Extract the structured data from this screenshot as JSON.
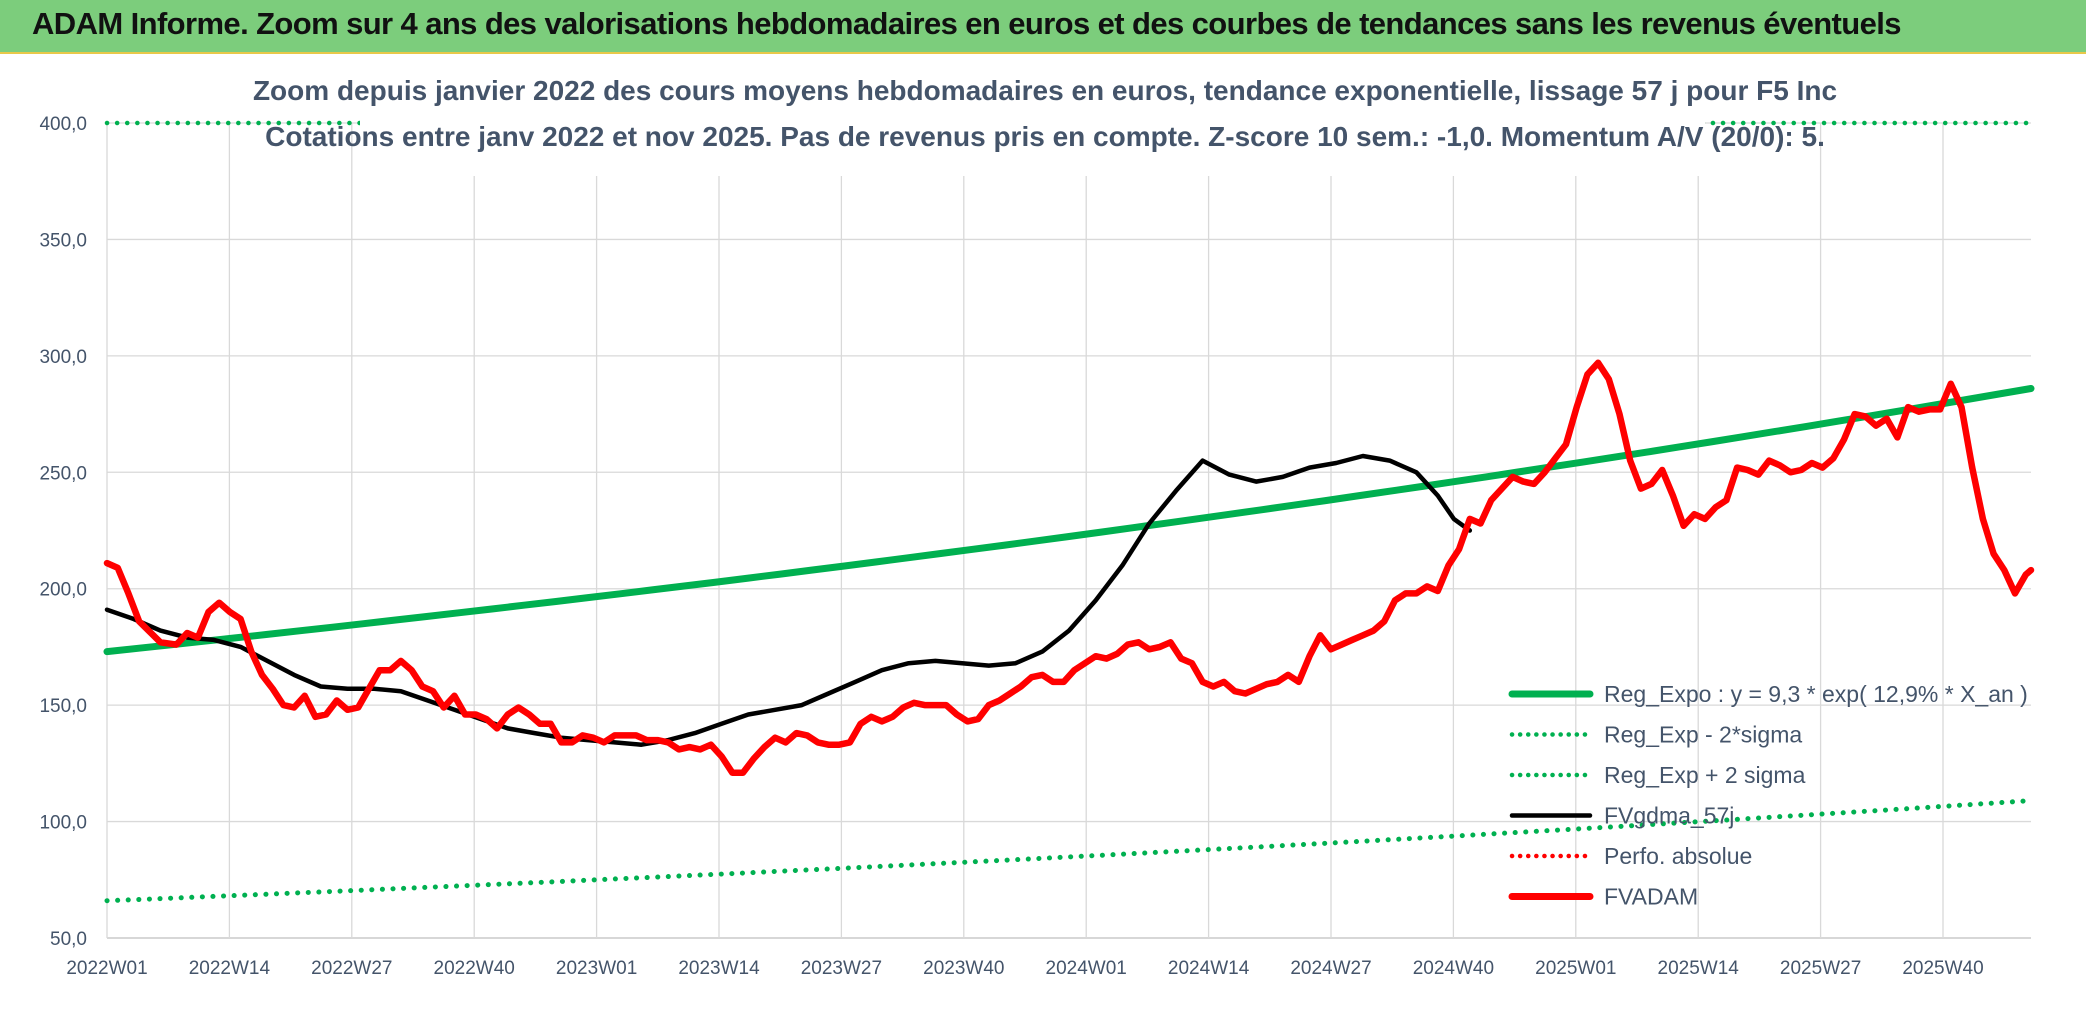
{
  "header": {
    "title": "ADAM Informe. Zoom sur 4 ans des valorisations hebdomadaires en euros et des courbes de tendances sans les revenus éventuels"
  },
  "colors": {
    "green": "#00b050",
    "red": "#ff0000",
    "black": "#000000",
    "grid": "#d9d9d9",
    "text": "#44546a",
    "banner": "#7ccd7c"
  },
  "chart_data": {
    "type": "line",
    "title_line1": "Zoom depuis janvier 2022 des cours moyens hebdomadaires en euros, tendance exponentielle, lissage 57 j pour F5 Inc",
    "title_line2": "Cotations entre janv 2022 et nov 2025. Pas de revenus pris en compte. Z-score 10 sem.: -1,0. Momentum A/V (20/0): 5.",
    "ylim": [
      50,
      400
    ],
    "y_ticks": [
      "50,0",
      "100,0",
      "150,0",
      "200,0",
      "250,0",
      "300,0",
      "350,0",
      "400,0"
    ],
    "x_ticks": [
      "2022W01",
      "2022W14",
      "2022W27",
      "2022W40",
      "2023W01",
      "2023W14",
      "2023W27",
      "2023W40",
      "2024W01",
      "2024W14",
      "2024W27",
      "2024W40",
      "2025W01",
      "2025W14",
      "2025W27",
      "2025W40"
    ],
    "week_count": 210,
    "legend": [
      {
        "label": "Reg_Expo : y = 9,3 * exp( 12,9% *  X_an )",
        "style": "solid",
        "color": "#00b050"
      },
      {
        "label": "Reg_Exp - 2*sigma",
        "style": "dotted",
        "color": "#00b050"
      },
      {
        "label": "Reg_Exp + 2 sigma",
        "style": "dotted",
        "color": "#00b050"
      },
      {
        "label": "FVgdma_57j",
        "style": "solid",
        "color": "#000000"
      },
      {
        "label": "Perfo. absolue",
        "style": "dotted",
        "color": "#ff0000"
      },
      {
        "label": "FVADAM",
        "style": "solid",
        "color": "#ff0000"
      }
    ],
    "series": [
      {
        "name": "Reg_Expo",
        "start": 173,
        "end": 286
      },
      {
        "name": "Reg_Exp - 2*sigma",
        "start": 66,
        "end": 109
      },
      {
        "name": "Reg_Exp + 2 sigma",
        "start": 400,
        "end": 400
      },
      {
        "name": "FVgdma_57j",
        "points": [
          [
            0,
            191
          ],
          [
            5,
            187
          ],
          [
            10,
            182
          ],
          [
            15,
            179
          ],
          [
            20,
            178
          ],
          [
            25,
            175
          ],
          [
            30,
            169
          ],
          [
            35,
            163
          ],
          [
            40,
            158
          ],
          [
            45,
            157
          ],
          [
            50,
            157
          ],
          [
            55,
            156
          ],
          [
            60,
            152
          ],
          [
            65,
            148
          ],
          [
            70,
            144
          ],
          [
            75,
            140
          ],
          [
            80,
            138
          ],
          [
            85,
            136
          ],
          [
            90,
            135
          ],
          [
            95,
            134
          ],
          [
            100,
            133
          ],
          [
            105,
            135
          ],
          [
            110,
            138
          ],
          [
            115,
            142
          ],
          [
            120,
            146
          ],
          [
            125,
            148
          ],
          [
            130,
            150
          ],
          [
            135,
            155
          ],
          [
            140,
            160
          ],
          [
            145,
            165
          ],
          [
            150,
            168
          ],
          [
            155,
            169
          ],
          [
            160,
            168
          ],
          [
            165,
            167
          ],
          [
            170,
            168
          ],
          [
            175,
            173
          ],
          [
            180,
            182
          ],
          [
            185,
            195
          ],
          [
            190,
            210
          ],
          [
            195,
            228
          ],
          [
            200,
            242
          ],
          [
            205,
            255
          ],
          [
            210,
            249
          ],
          [
            215,
            246
          ],
          [
            220,
            248
          ],
          [
            225,
            252
          ],
          [
            230,
            254
          ],
          [
            235,
            257
          ],
          [
            240,
            255
          ],
          [
            245,
            250
          ],
          [
            249,
            240
          ],
          [
            252,
            230
          ],
          [
            255,
            225
          ]
        ]
      },
      {
        "name": "FVADAM",
        "points": [
          [
            0,
            211
          ],
          [
            2,
            209
          ],
          [
            4,
            198
          ],
          [
            6,
            186
          ],
          [
            10,
            177
          ],
          [
            13,
            176
          ],
          [
            15,
            181
          ],
          [
            17,
            179
          ],
          [
            19,
            190
          ],
          [
            21,
            194
          ],
          [
            23,
            190
          ],
          [
            25,
            187
          ],
          [
            27,
            173
          ],
          [
            29,
            163
          ],
          [
            31,
            157
          ],
          [
            33,
            150
          ],
          [
            35,
            149
          ],
          [
            37,
            154
          ],
          [
            39,
            145
          ],
          [
            41,
            146
          ],
          [
            43,
            152
          ],
          [
            45,
            148
          ],
          [
            47,
            149
          ],
          [
            49,
            157
          ],
          [
            51,
            165
          ],
          [
            53,
            165
          ],
          [
            55,
            169
          ],
          [
            57,
            165
          ],
          [
            59,
            158
          ],
          [
            61,
            156
          ],
          [
            63,
            149
          ],
          [
            65,
            154
          ],
          [
            67,
            146
          ],
          [
            69,
            146
          ],
          [
            71,
            144
          ],
          [
            73,
            140
          ],
          [
            75,
            146
          ],
          [
            77,
            149
          ],
          [
            79,
            146
          ],
          [
            81,
            142
          ],
          [
            83,
            142
          ],
          [
            85,
            134
          ],
          [
            87,
            134
          ],
          [
            89,
            137
          ],
          [
            91,
            136
          ],
          [
            93,
            134
          ],
          [
            95,
            137
          ],
          [
            97,
            137
          ],
          [
            99,
            137
          ],
          [
            101,
            135
          ],
          [
            103,
            135
          ],
          [
            105,
            134
          ],
          [
            107,
            131
          ],
          [
            109,
            132
          ],
          [
            111,
            131
          ],
          [
            113,
            133
          ],
          [
            115,
            128
          ],
          [
            117,
            121
          ],
          [
            119,
            121
          ],
          [
            121,
            127
          ],
          [
            123,
            132
          ],
          [
            125,
            136
          ],
          [
            127,
            134
          ],
          [
            129,
            138
          ],
          [
            131,
            137
          ],
          [
            133,
            134
          ],
          [
            135,
            133
          ],
          [
            137,
            133
          ],
          [
            139,
            134
          ],
          [
            141,
            142
          ],
          [
            143,
            145
          ],
          [
            145,
            143
          ],
          [
            147,
            145
          ],
          [
            149,
            149
          ],
          [
            151,
            151
          ],
          [
            153,
            150
          ],
          [
            155,
            150
          ],
          [
            157,
            150
          ],
          [
            159,
            146
          ],
          [
            161,
            143
          ],
          [
            163,
            144
          ],
          [
            165,
            150
          ],
          [
            167,
            152
          ],
          [
            169,
            155
          ],
          [
            171,
            158
          ],
          [
            173,
            162
          ],
          [
            175,
            163
          ],
          [
            177,
            160
          ],
          [
            179,
            160
          ],
          [
            181,
            165
          ],
          [
            183,
            168
          ],
          [
            185,
            171
          ],
          [
            187,
            170
          ],
          [
            189,
            172
          ],
          [
            191,
            176
          ],
          [
            193,
            177
          ],
          [
            195,
            174
          ],
          [
            197,
            175
          ],
          [
            199,
            177
          ],
          [
            201,
            170
          ],
          [
            203,
            168
          ],
          [
            205,
            160
          ],
          [
            207,
            158
          ],
          [
            209,
            160
          ],
          [
            211,
            156
          ],
          [
            213,
            155
          ],
          [
            215,
            157
          ],
          [
            217,
            159
          ],
          [
            219,
            160
          ],
          [
            221,
            163
          ],
          [
            223,
            160
          ],
          [
            225,
            171
          ],
          [
            227,
            180
          ],
          [
            229,
            174
          ],
          [
            231,
            176
          ],
          [
            233,
            178
          ],
          [
            235,
            180
          ],
          [
            237,
            182
          ],
          [
            239,
            186
          ],
          [
            241,
            195
          ],
          [
            243,
            198
          ],
          [
            245,
            198
          ],
          [
            247,
            201
          ],
          [
            249,
            199
          ],
          [
            251,
            210
          ],
          [
            253,
            217
          ],
          [
            255,
            230
          ],
          [
            257,
            228
          ],
          [
            259,
            238
          ],
          [
            261,
            243
          ],
          [
            263,
            248
          ],
          [
            265,
            246
          ],
          [
            267,
            245
          ],
          [
            269,
            250
          ],
          [
            271,
            256
          ],
          [
            273,
            262
          ],
          [
            275,
            278
          ],
          [
            277,
            292
          ],
          [
            279,
            297
          ],
          [
            281,
            290
          ],
          [
            283,
            275
          ],
          [
            285,
            255
          ],
          [
            287,
            243
          ],
          [
            289,
            245
          ],
          [
            291,
            251
          ],
          [
            293,
            240
          ],
          [
            295,
            227
          ],
          [
            297,
            232
          ],
          [
            299,
            230
          ],
          [
            301,
            235
          ],
          [
            303,
            238
          ],
          [
            305,
            252
          ],
          [
            307,
            251
          ],
          [
            309,
            249
          ],
          [
            311,
            255
          ],
          [
            313,
            253
          ],
          [
            315,
            250
          ],
          [
            317,
            251
          ],
          [
            319,
            254
          ],
          [
            321,
            252
          ],
          [
            323,
            256
          ],
          [
            325,
            264
          ],
          [
            327,
            275
          ],
          [
            329,
            274
          ],
          [
            331,
            270
          ],
          [
            333,
            273
          ],
          [
            335,
            265
          ],
          [
            337,
            278
          ],
          [
            339,
            276
          ],
          [
            341,
            277
          ],
          [
            343,
            277
          ],
          [
            345,
            288
          ],
          [
            347,
            278
          ],
          [
            349,
            252
          ],
          [
            351,
            230
          ],
          [
            353,
            215
          ],
          [
            355,
            208
          ],
          [
            357,
            198
          ],
          [
            359,
            206
          ],
          [
            360,
            208
          ]
        ]
      }
    ]
  }
}
